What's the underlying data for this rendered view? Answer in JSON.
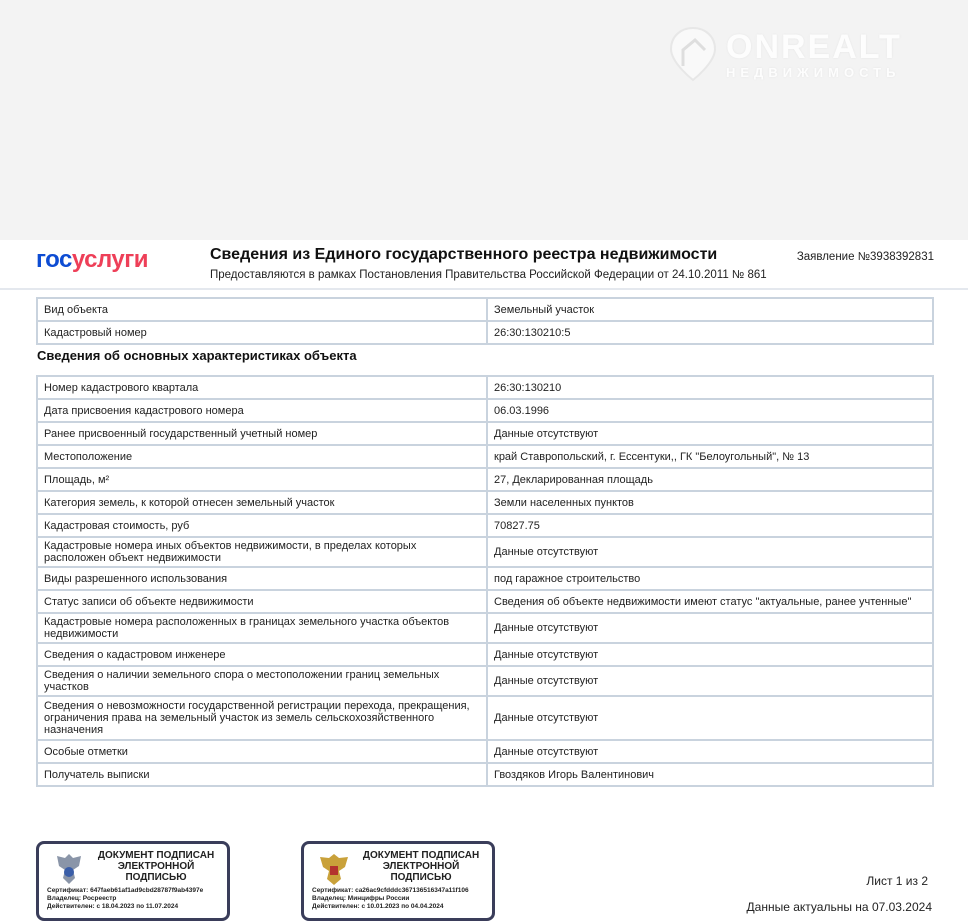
{
  "watermark": {
    "brand": "ONREALT",
    "tagline": "НЕДВИЖИМОСТЬ"
  },
  "header": {
    "logo_part1": "гос",
    "logo_part2": "услуги",
    "title": "Сведения из Единого государственного реестра недвижимости",
    "subtitle": "Предоставляются в рамках Постановления Правительства Российской Федерации от 24.10.2011 № 861",
    "application": "Заявление №3938392831"
  },
  "top_table": [
    {
      "label": "Вид объекта",
      "value": "Земельный участок"
    },
    {
      "label": "Кадастровый номер",
      "value": "26:30:130210:5"
    }
  ],
  "section_title": "Сведения об основных характеристиках объекта",
  "main_table": [
    {
      "label": "Номер кадастрового квартала",
      "value": "26:30:130210"
    },
    {
      "label": "Дата присвоения кадастрового номера",
      "value": "06.03.1996"
    },
    {
      "label": "Ранее присвоенный государственный учетный номер",
      "value": "Данные отсутствуют"
    },
    {
      "label": "Местоположение",
      "value": "край Ставропольский, г. Ессентуки,, ГК \"Белоугольный\", № 13"
    },
    {
      "label": "Площадь, м²",
      "value": "27, Декларированная площадь"
    },
    {
      "label": "Категория земель, к которой отнесен земельный участок",
      "value": "Земли населенных пунктов"
    },
    {
      "label": "Кадастровая стоимость, руб",
      "value": "70827.75"
    },
    {
      "label": "Кадастровые номера иных объектов недвижимости, в пределах которых расположен объект недвижимости",
      "value": "Данные отсутствуют"
    },
    {
      "label": "Виды разрешенного использования",
      "value": "под гаражное строительство"
    },
    {
      "label": "Статус записи об объекте недвижимости",
      "value": "Сведения об объекте недвижимости имеют статус \"актуальные, ранее учтенные\""
    },
    {
      "label": "Кадастровые номера расположенных в границах земельного участка объектов недвижимости",
      "value": "Данные отсутствуют"
    },
    {
      "label": "Сведения о кадастровом инженере",
      "value": "Данные отсутствуют"
    },
    {
      "label": "Сведения о наличии земельного спора о местоположении границ земельных участков",
      "value": "Данные отсутствуют"
    },
    {
      "label": "Сведения о невозможности государственной регистрации перехода, прекращения, ограничения права на земельный участок из земель сельскохозяйственного назначения",
      "value": "Данные отсутствуют"
    },
    {
      "label": "Особые отметки",
      "value": "Данные отсутствуют"
    },
    {
      "label": "Получатель выписки",
      "value": "Гвоздяков Игорь Валентинович"
    }
  ],
  "stamps": [
    {
      "title": "ДОКУМЕНТ ПОДПИСАН ЭЛЕКТРОННОЙ ПОДПИСЬЮ",
      "cert": "Сертификат: 647faeb61af1ad9cbd28787f9ab4397e",
      "owner": "Владелец: Росреестр",
      "valid": "Действителен: с 18.04.2023 по 11.07.2024"
    },
    {
      "title": "ДОКУМЕНТ ПОДПИСАН ЭЛЕКТРОННОЙ ПОДПИСЬЮ",
      "cert": "Сертификат: ca26ac9cfdddc367136516347a11f106",
      "owner": "Владелец: Минцифры России",
      "valid": "Действителен: с 10.01.2023 по 04.04.2024"
    }
  ],
  "footer": {
    "sheet": "Лист 1 из  2",
    "actual": "Данные актуальны на 07.03.2024"
  },
  "colors": {
    "logo_blue": "#0d4cd3",
    "logo_red": "#ee3f58",
    "border": "#c9d3de"
  }
}
